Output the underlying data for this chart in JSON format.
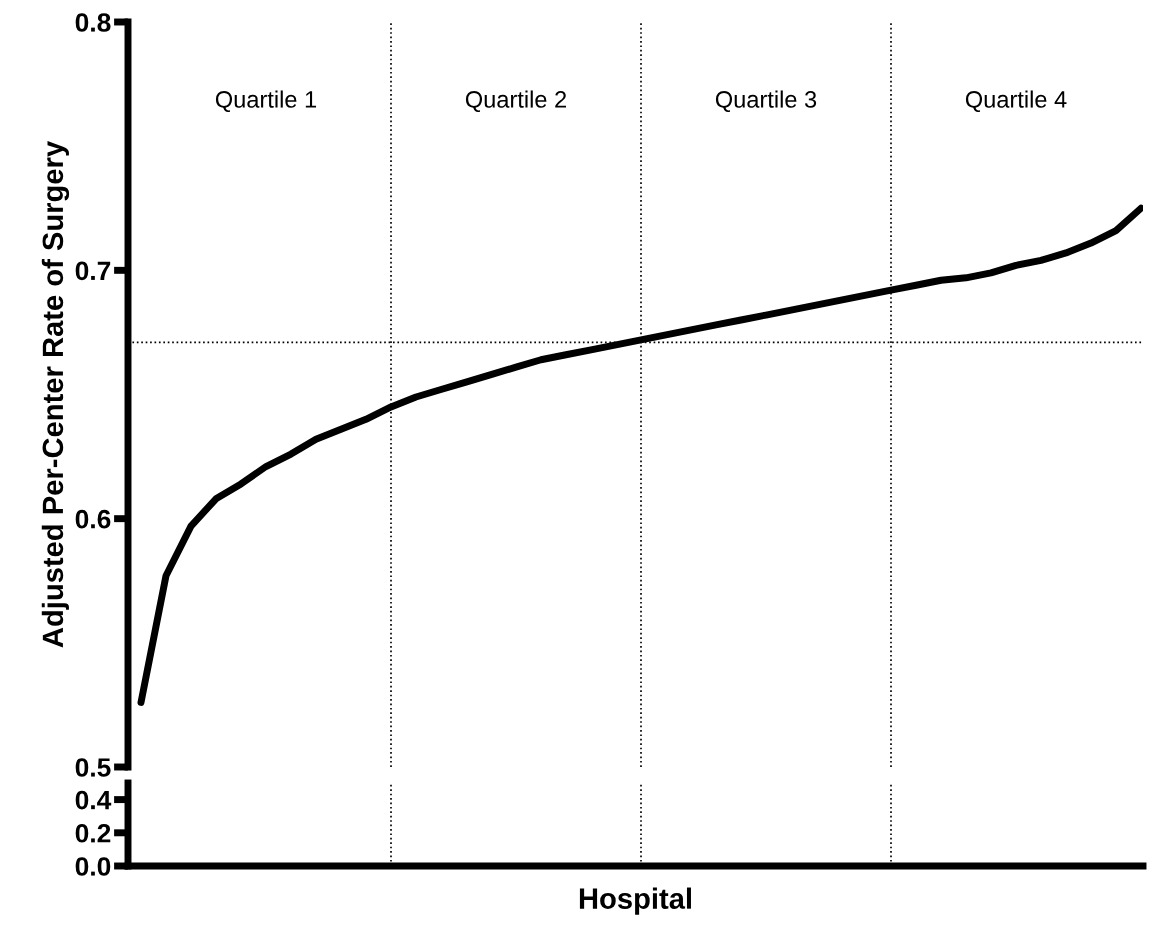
{
  "chart_data": [
    {
      "type": "line",
      "ylabel": "Adjusted Per-Center Rate of Surgery",
      "categories": [
        null,
        null,
        null,
        null,
        null,
        null,
        null,
        null,
        null,
        null,
        null,
        null,
        null,
        null,
        null,
        null,
        null,
        null,
        null,
        null,
        null,
        null,
        null,
        null,
        null,
        null,
        null,
        null,
        null,
        null,
        null,
        null,
        null,
        null,
        null,
        null,
        null,
        null,
        null,
        null,
        null
      ],
      "series": [
        {
          "color": "#000000",
          "values": [
            0.526,
            0.577,
            0.597,
            0.608,
            0.614,
            0.621,
            0.626,
            0.632,
            0.636,
            0.64,
            0.645,
            0.649,
            0.652,
            0.655,
            0.658,
            0.661,
            0.664,
            0.666,
            0.668,
            0.67,
            0.672,
            0.674,
            0.676,
            0.678,
            0.68,
            0.682,
            0.684,
            0.686,
            0.688,
            0.69,
            0.692,
            0.694,
            0.696,
            0.697,
            0.699,
            0.702,
            0.704,
            0.707,
            0.711,
            0.716,
            0.725
          ]
        }
      ],
      "ylim": [
        0.5,
        0.8
      ],
      "yticks": [
        0.5,
        0.6,
        0.7,
        0.8
      ],
      "ref_lines": [
        {
          "axis": "y",
          "value": 0.671,
          "line_style": "dotted",
          "color": "#000000"
        }
      ],
      "annotations": [
        "Quartile 1",
        "Quartile 2",
        "Quartile 3",
        "Quartile 4"
      ],
      "grid": "x",
      "legend": false,
      "marker": "none",
      "line_style": "solid",
      "tick_labels": "y"
    },
    {
      "type": "line",
      "xlabel": "Hospital",
      "categories": [
        null,
        null,
        null,
        null,
        null,
        null,
        null,
        null,
        null,
        null,
        null,
        null,
        null,
        null,
        null,
        null,
        null,
        null,
        null,
        null,
        null,
        null,
        null,
        null,
        null,
        null,
        null,
        null,
        null,
        null,
        null,
        null,
        null,
        null,
        null,
        null,
        null,
        null,
        null,
        null,
        null
      ],
      "ylim": [
        0,
        0.5
      ],
      "yticks": [
        {
          "value": 0,
          "label": "0.0"
        },
        0.2,
        0.4
      ],
      "grid": "x",
      "legend": false,
      "tick_labels": "y"
    }
  ]
}
